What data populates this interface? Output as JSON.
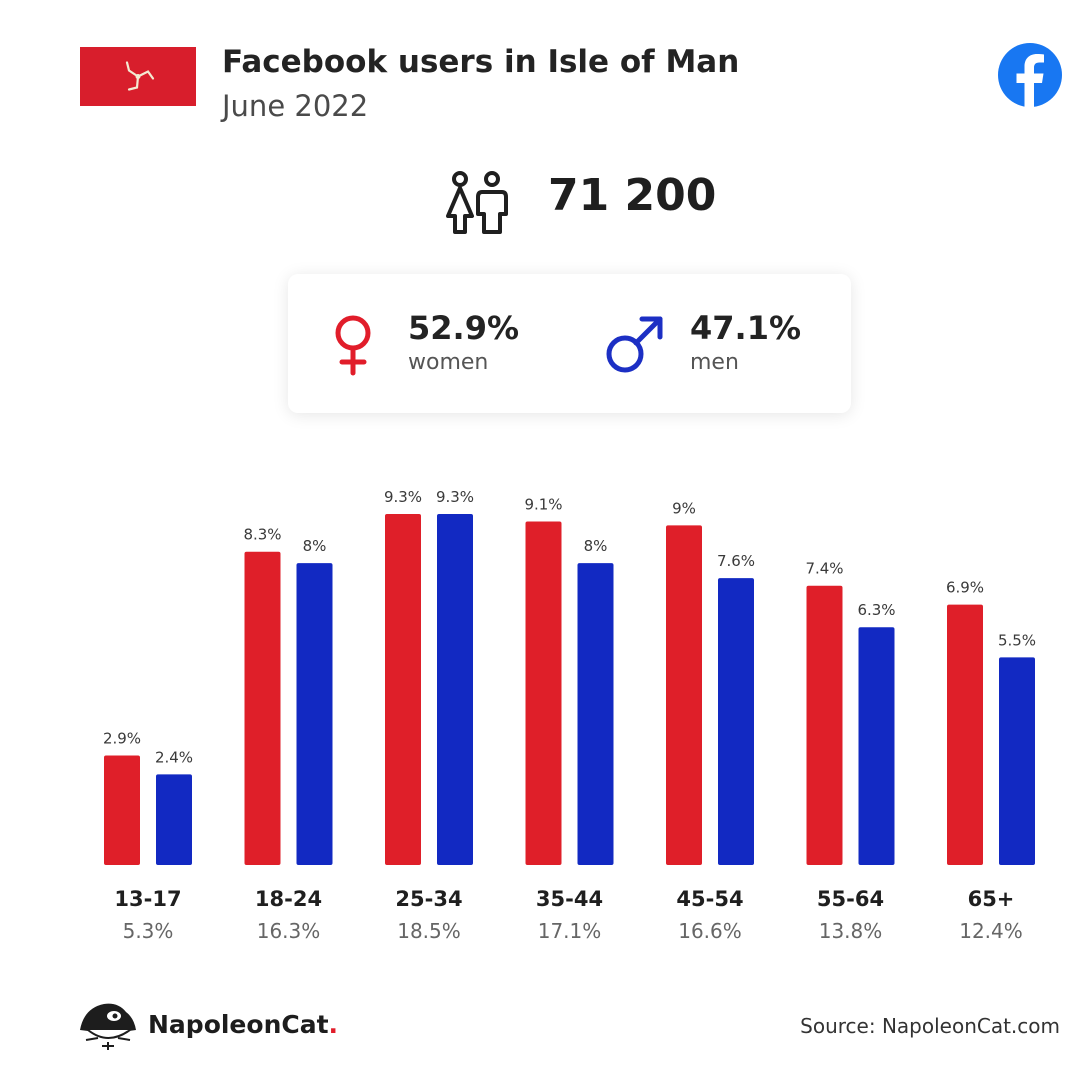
{
  "header": {
    "title": "Facebook users in Isle of Man",
    "subtitle": "June 2022",
    "flag_icon": "isle-of-man-flag",
    "brand_icon": "facebook-icon"
  },
  "total": {
    "icon": "users-icon",
    "value": "71 200"
  },
  "gender": {
    "women": {
      "pct": "52.9%",
      "label": "women",
      "color": "#e11d2a",
      "icon": "female-icon"
    },
    "men": {
      "pct": "47.1%",
      "label": "men",
      "color": "#1c2fc4",
      "icon": "male-icon"
    }
  },
  "chart_data": {
    "type": "bar",
    "categories": [
      "13-17",
      "18-24",
      "25-34",
      "35-44",
      "45-54",
      "55-64",
      "65+"
    ],
    "category_totals": [
      "5.3%",
      "16.3%",
      "18.5%",
      "17.1%",
      "16.6%",
      "13.8%",
      "12.4%"
    ],
    "series": [
      {
        "values": [
          2.9,
          8.3,
          9.3,
          9.1,
          9,
          7.4,
          6.9
        ],
        "labels": [
          "2.9%",
          "8.3%",
          "9.3%",
          "9.1%",
          "9%",
          "7.4%",
          "6.9%"
        ],
        "color": "#df1f29"
      },
      {
        "values": [
          2.4,
          8,
          9.3,
          8,
          7.6,
          6.3,
          5.5
        ],
        "labels": [
          "2.4%",
          "8%",
          "9.3%",
          "8%",
          "7.6%",
          "6.3%",
          "5.5%"
        ],
        "color": "#1229c2"
      }
    ],
    "ylim": [
      0,
      9.3
    ],
    "grid": false,
    "legend": "none"
  },
  "footer": {
    "brand": "NapoleonCat",
    "brand_dot": ".",
    "brand_icon": "napoleoncat-logo-icon",
    "source": "Source: NapoleonCat.com"
  }
}
